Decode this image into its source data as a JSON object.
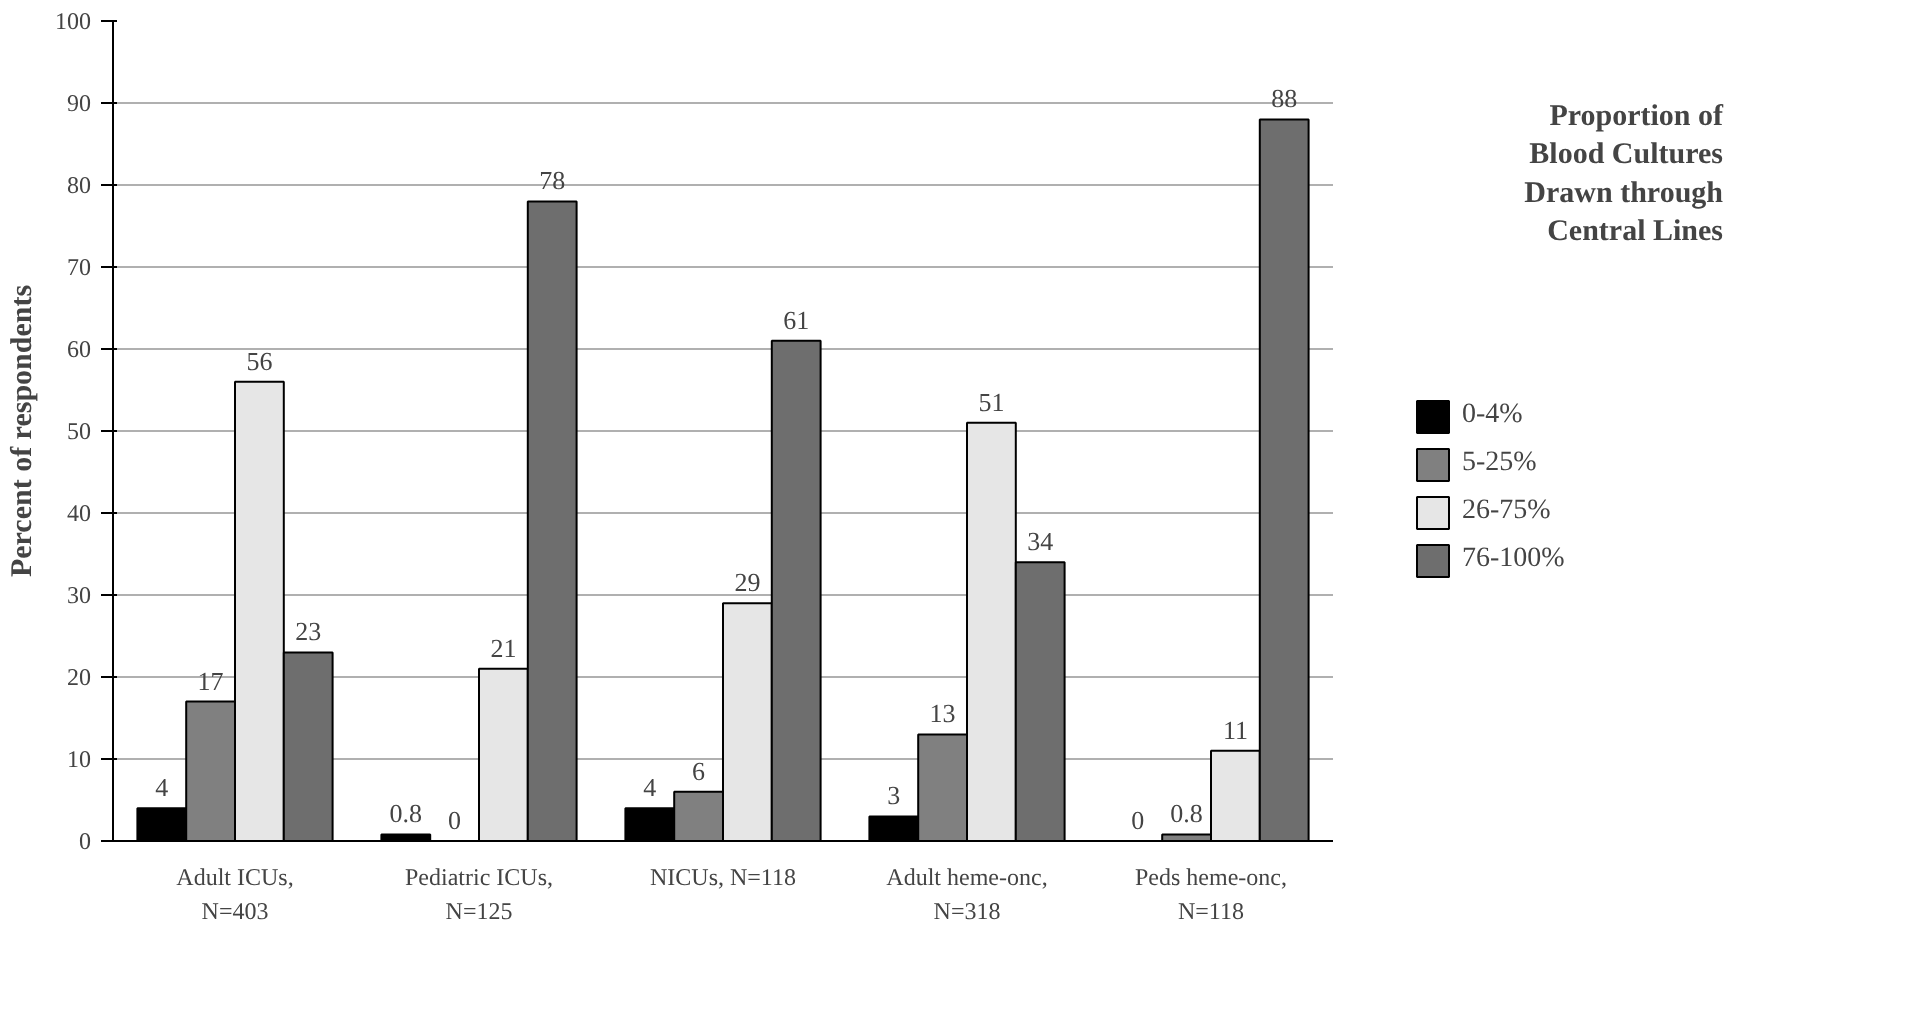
{
  "chart_data": {
    "type": "bar",
    "ylabel": "Percent of respondents",
    "legend_title": "Proportion of Blood Cultures Drawn through Central Lines",
    "categories": [
      "Adult ICUs, N=403",
      "Pediatric ICUs, N=125",
      "NICUs, N=118",
      "Adult heme-onc, N=318",
      "Peds heme-onc, N=118"
    ],
    "series": [
      {
        "name": "0-4%",
        "color": "#000000",
        "values": [
          4,
          0.8,
          4,
          3,
          0
        ]
      },
      {
        "name": "5-25%",
        "color": "#808080",
        "values": [
          17,
          0,
          6,
          13,
          0.8
        ]
      },
      {
        "name": "26-75%",
        "color": "#e6e6e6",
        "values": [
          56,
          21,
          29,
          51,
          11
        ]
      },
      {
        "name": "76-100%",
        "color": "#6e6e6e",
        "values": [
          23,
          78,
          61,
          34,
          88
        ]
      }
    ],
    "ylim": [
      0,
      100
    ],
    "yticks": [
      0,
      10,
      20,
      30,
      40,
      50,
      60,
      70,
      80,
      90,
      100
    ],
    "grid": "y",
    "legend": "right",
    "data_labels": true
  }
}
